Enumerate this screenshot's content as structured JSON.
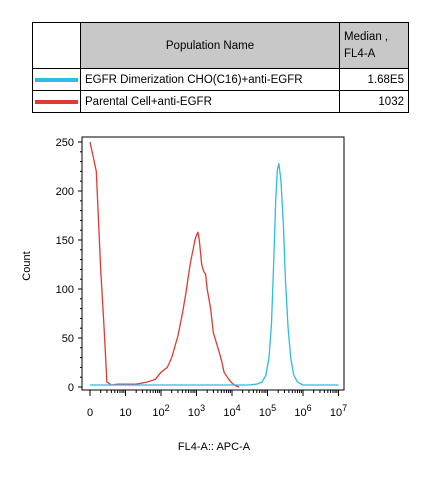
{
  "table": {
    "header_name": "Population Name",
    "header_stat": "Median ,\nFL4-A",
    "rows": [
      {
        "color": "#2cbce4",
        "name": "EGFR Dimerization CHO(C16)+anti-EGFR",
        "value": "1.68E5"
      },
      {
        "color": "#e03a32",
        "name": "Parental Cell+anti-EGFR",
        "value": "1032"
      }
    ]
  },
  "chart_data": {
    "type": "line",
    "xlabel": "FL4-A:: APC-A",
    "ylabel": "Count",
    "x_scale": "log",
    "xlim": [
      0,
      10000000
    ],
    "ylim": [
      0,
      260
    ],
    "y_ticks": [
      0,
      50,
      100,
      150,
      200,
      250
    ],
    "x_tick_labels": [
      "0",
      "10",
      "10 2",
      "10 3",
      "10 4",
      "10 5",
      "10 6",
      "10 7"
    ],
    "series": [
      {
        "name": "Parental Cell+anti-EGFR",
        "color": "#e03a32",
        "x": [
          1,
          1.5,
          2,
          2.5,
          3,
          4,
          6,
          10,
          20,
          40,
          70,
          100,
          150,
          200,
          300,
          400,
          500,
          600,
          700,
          800,
          900,
          1000,
          1100,
          1200,
          1400,
          1600,
          1800,
          2000,
          2500,
          3000,
          4000,
          5000,
          6000,
          8000,
          10000,
          13000,
          16000
        ],
        "y": [
          250,
          220,
          120,
          60,
          5,
          2,
          3,
          3,
          3,
          5,
          8,
          15,
          20,
          30,
          52,
          75,
          95,
          115,
          130,
          140,
          150,
          155,
          158,
          150,
          125,
          118,
          115,
          100,
          80,
          55,
          40,
          28,
          15,
          8,
          4,
          1,
          0
        ]
      },
      {
        "name": "EGFR Dimerization CHO(C16)+anti-EGFR",
        "color": "#2cbce4",
        "x": [
          1,
          100,
          1000,
          10000,
          30000,
          50000,
          70000,
          90000,
          110000,
          130000,
          150000,
          170000,
          190000,
          210000,
          240000,
          280000,
          320000,
          380000,
          450000,
          550000,
          700000,
          1000000,
          3000000,
          10000000
        ],
        "y": [
          2,
          2,
          2,
          2,
          2,
          3,
          5,
          12,
          30,
          65,
          130,
          190,
          222,
          228,
          210,
          165,
          110,
          60,
          30,
          12,
          5,
          2,
          2,
          2
        ]
      }
    ]
  }
}
